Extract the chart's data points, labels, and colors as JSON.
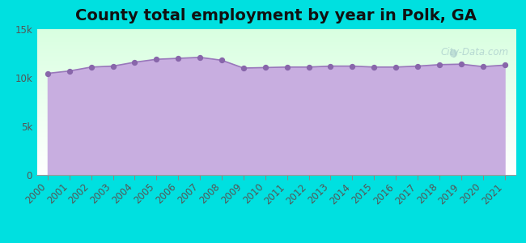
{
  "title": "County total employment by year in Polk, GA",
  "background_color": "#00e0e0",
  "plot_bg_top_color": "#edfaed",
  "plot_bg_bottom_color": "#e8e8f8",
  "area_fill_color": "#c8aee0",
  "line_color": "#9977bb",
  "marker_color": "#8866aa",
  "years": [
    2000,
    2001,
    2002,
    2003,
    2004,
    2005,
    2006,
    2007,
    2008,
    2009,
    2010,
    2011,
    2012,
    2013,
    2014,
    2015,
    2016,
    2017,
    2018,
    2019,
    2020,
    2021
  ],
  "values": [
    10450,
    10700,
    11100,
    11200,
    11600,
    11900,
    12000,
    12100,
    11800,
    11000,
    11050,
    11100,
    11100,
    11200,
    11200,
    11100,
    11100,
    11200,
    11350,
    11400,
    11150,
    11300
  ],
  "ylim": [
    0,
    15000
  ],
  "yticks": [
    0,
    5000,
    10000,
    15000
  ],
  "ytick_labels": [
    "0",
    "5k",
    "10k",
    "15k"
  ],
  "title_fontsize": 14,
  "tick_label_fontsize": 8.5,
  "watermark_text": "City-Data.com",
  "left_strip_color": "#d0eedd"
}
